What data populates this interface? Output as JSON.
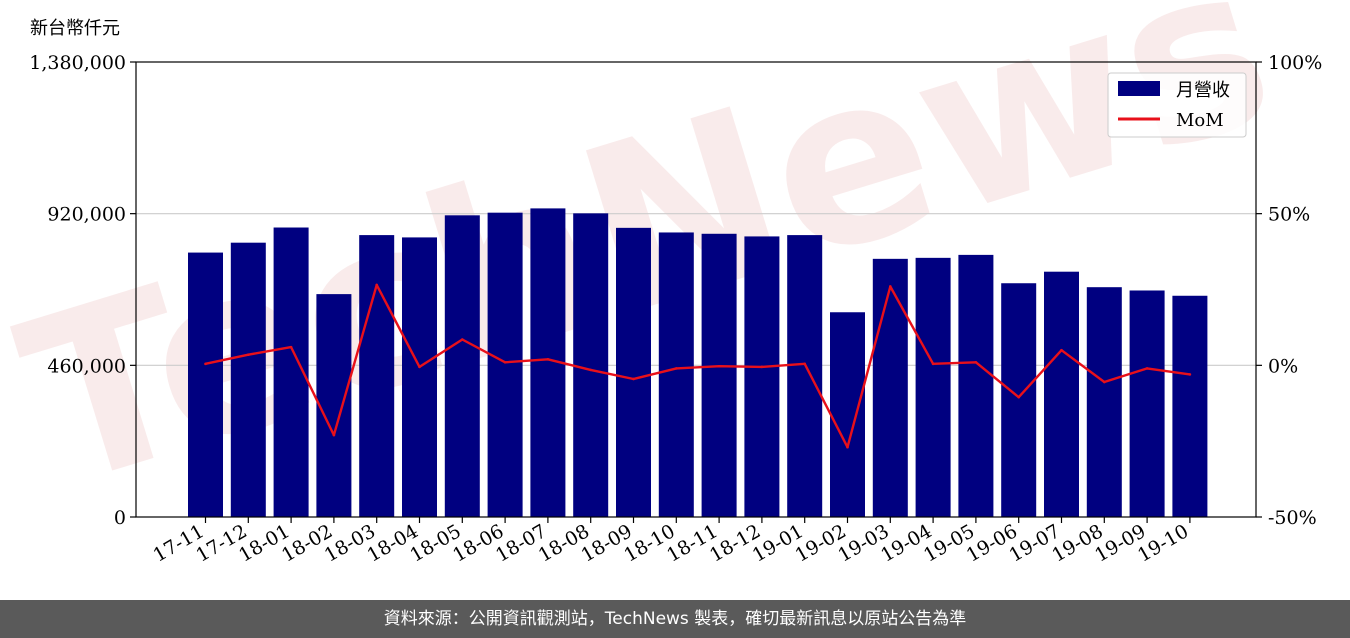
{
  "chart_data": {
    "type": "bar",
    "y_unit_label": "新台幣仟元",
    "categories": [
      "17-11",
      "17-12",
      "18-01",
      "18-02",
      "18-03",
      "18-04",
      "18-05",
      "18-06",
      "18-07",
      "18-08",
      "18-09",
      "18-10",
      "18-11",
      "18-12",
      "19-01",
      "19-02",
      "19-03",
      "19-04",
      "19-05",
      "19-06",
      "19-07",
      "19-08",
      "19-09",
      "19-10"
    ],
    "series": [
      {
        "name": "月營收",
        "kind": "bar",
        "axis": "left",
        "color": "#000080",
        "values": [
          802000,
          832000,
          878000,
          676000,
          855000,
          848000,
          915000,
          923000,
          936000,
          921000,
          877000,
          863000,
          859000,
          851000,
          855000,
          621000,
          783000,
          786000,
          795000,
          709000,
          744000,
          697000,
          687000,
          671000
        ]
      },
      {
        "name": "MoM",
        "kind": "line",
        "axis": "right",
        "color": "#e8101a",
        "values": [
          0.5,
          3.5,
          6.0,
          -23.0,
          26.5,
          -0.5,
          8.5,
          1.0,
          2.0,
          -1.5,
          -4.5,
          -1.0,
          -0.3,
          -0.5,
          0.5,
          -27.0,
          26.0,
          0.5,
          1.0,
          -10.5,
          5.0,
          -5.5,
          -1.0,
          -3.0
        ]
      }
    ],
    "y_left": {
      "ylim": [
        0,
        1380000
      ],
      "ticks": [
        0,
        460000,
        920000,
        1380000
      ],
      "tick_labels": [
        "0",
        "460,000",
        "920,000",
        "1,380,000"
      ]
    },
    "y_right": {
      "ylim": [
        -50,
        100
      ],
      "ticks": [
        -50,
        0,
        50,
        100
      ],
      "tick_labels": [
        "-50%",
        "0%",
        "50%",
        "100%"
      ]
    },
    "grid": "horizontal",
    "legend_position": "top-right",
    "watermark": "TechNews"
  },
  "footer": {
    "text": "資料來源：公開資訊觀測站，TechNews 製表，確切最新訊息以原站公告為準"
  }
}
